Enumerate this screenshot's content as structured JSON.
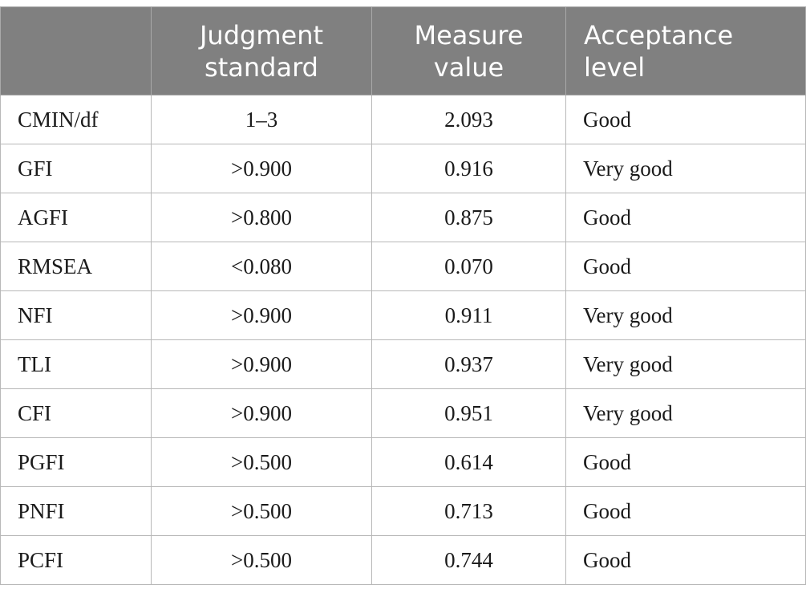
{
  "table": {
    "headers": [
      {
        "line1": "",
        "line2": ""
      },
      {
        "line1": "Judgment",
        "line2": "standard"
      },
      {
        "line1": "Measure",
        "line2": "value"
      },
      {
        "line1": "Acceptance",
        "line2": "level"
      }
    ],
    "rows": [
      {
        "index": "CMIN/df",
        "standard": "1–3",
        "value": "2.093",
        "level": "Good"
      },
      {
        "index": "GFI",
        "standard": ">0.900",
        "value": "0.916",
        "level": "Very good"
      },
      {
        "index": "AGFI",
        "standard": ">0.800",
        "value": "0.875",
        "level": "Good"
      },
      {
        "index": "RMSEA",
        "standard": "<0.080",
        "value": "0.070",
        "level": "Good"
      },
      {
        "index": "NFI",
        "standard": ">0.900",
        "value": "0.911",
        "level": "Very good"
      },
      {
        "index": "TLI",
        "standard": ">0.900",
        "value": "0.937",
        "level": "Very good"
      },
      {
        "index": "CFI",
        "standard": ">0.900",
        "value": "0.951",
        "level": "Very good"
      },
      {
        "index": "PGFI",
        "standard": ">0.500",
        "value": "0.614",
        "level": "Good"
      },
      {
        "index": "PNFI",
        "standard": ">0.500",
        "value": "0.713",
        "level": "Good"
      },
      {
        "index": "PCFI",
        "standard": ">0.500",
        "value": "0.744",
        "level": "Good"
      }
    ]
  },
  "colors": {
    "header_bg": "#808080",
    "header_text": "#ffffff",
    "grid_line": "#b8b8b8"
  }
}
